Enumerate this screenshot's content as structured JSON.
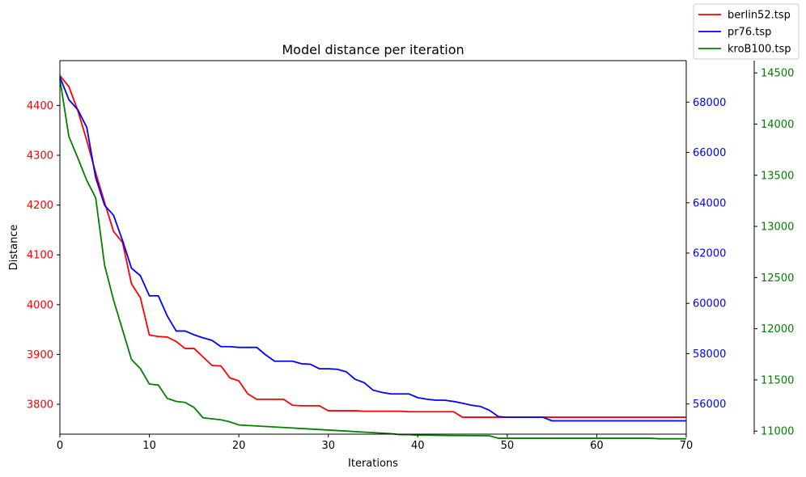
{
  "chart_data": {
    "type": "line",
    "title": "Model distance per iteration",
    "xlabel": "Iterations",
    "ylabel": "Distance",
    "xlim": [
      0,
      70
    ],
    "xticks": [
      0,
      10,
      20,
      30,
      40,
      50,
      60,
      70
    ],
    "grid": false,
    "legend_position": "top-right (outside figure corner)",
    "axes": [
      {
        "name": "berlin52-axis",
        "side": "left",
        "color": "#ff0000",
        "ylim": [
          3740,
          4490
        ],
        "ticks": [
          3800,
          3900,
          4000,
          4100,
          4200,
          4300,
          4400
        ]
      },
      {
        "name": "pr76-axis",
        "side": "right",
        "color": "#0000ff",
        "ylim": [
          54800,
          69650
        ],
        "ticks": [
          56000,
          58000,
          60000,
          62000,
          64000,
          66000,
          68000
        ]
      },
      {
        "name": "krob100-axis",
        "side": "right-outer",
        "color": "#008000",
        "ylim": [
          10970,
          14620
        ],
        "ticks": [
          11000,
          11500,
          12000,
          12500,
          13000,
          13500,
          14000,
          14500
        ]
      }
    ],
    "series": [
      {
        "name": "berlin52.tsp",
        "color": "#ff0000",
        "axis": 0,
        "x": [
          0,
          1,
          2,
          3,
          4,
          5,
          6,
          7,
          8,
          9,
          10,
          11,
          12,
          13,
          14,
          15,
          16,
          17,
          18,
          19,
          20,
          21,
          22,
          23,
          24,
          25,
          26,
          27,
          28,
          29,
          30,
          31,
          32,
          33,
          34,
          35,
          36,
          37,
          38,
          39,
          40,
          41,
          42,
          43,
          44,
          45,
          46,
          47,
          48,
          49,
          50,
          51,
          52,
          53,
          54,
          55,
          56,
          57,
          58,
          59,
          60,
          61,
          62,
          63,
          64,
          65,
          66,
          67,
          68,
          69,
          70
        ],
        "values": [
          4460,
          4438,
          4390,
          4330,
          4265,
          4205,
          4147,
          4125,
          4042,
          4014,
          3939,
          3936,
          3935,
          3926,
          3912,
          3912,
          3895,
          3878,
          3877,
          3853,
          3847,
          3821,
          3810,
          3810,
          3810,
          3810,
          3798,
          3797,
          3797,
          3797,
          3787,
          3787,
          3787,
          3787,
          3786,
          3786,
          3786,
          3786,
          3786,
          3785,
          3785,
          3785,
          3785,
          3785,
          3785,
          3774,
          3774,
          3774,
          3774,
          3774,
          3774,
          3774,
          3774,
          3774,
          3774,
          3774,
          3774,
          3774,
          3774,
          3774,
          3774,
          3774,
          3774,
          3774,
          3774,
          3774,
          3774,
          3774,
          3774,
          3774,
          3774
        ]
      },
      {
        "name": "pr76.tsp",
        "color": "#0000ff",
        "axis": 1,
        "x": [
          0,
          1,
          2,
          3,
          4,
          5,
          6,
          7,
          8,
          9,
          10,
          11,
          12,
          13,
          14,
          15,
          16,
          17,
          18,
          19,
          20,
          21,
          22,
          23,
          24,
          25,
          26,
          27,
          28,
          29,
          30,
          31,
          32,
          33,
          34,
          35,
          36,
          37,
          38,
          39,
          40,
          41,
          42,
          43,
          44,
          45,
          46,
          47,
          48,
          49,
          50,
          51,
          52,
          53,
          54,
          55,
          56,
          57,
          58,
          59,
          60,
          61,
          62,
          63,
          64,
          65,
          66,
          67,
          68,
          69,
          70
        ],
        "values": [
          69000,
          68100,
          67700,
          67000,
          65000,
          63900,
          63500,
          62500,
          61400,
          61100,
          60300,
          60300,
          59500,
          58900,
          58900,
          58750,
          58630,
          58530,
          58280,
          58280,
          58250,
          58250,
          58250,
          57950,
          57700,
          57700,
          57700,
          57600,
          57580,
          57400,
          57400,
          57380,
          57280,
          56980,
          56850,
          56550,
          56460,
          56400,
          56400,
          56400,
          56250,
          56190,
          56150,
          56150,
          56100,
          56030,
          55950,
          55900,
          55750,
          55500,
          55470,
          55470,
          55470,
          55470,
          55470,
          55330,
          55330,
          55330,
          55330,
          55330,
          55330,
          55330,
          55330,
          55330,
          55330,
          55330,
          55330,
          55330,
          55330,
          55330,
          55330
        ]
      },
      {
        "name": "kroB100.tsp",
        "color": "#008000",
        "axis": 2,
        "x": [
          0,
          1,
          2,
          3,
          4,
          5,
          6,
          7,
          8,
          9,
          10,
          11,
          12,
          13,
          14,
          15,
          16,
          17,
          18,
          19,
          20,
          21,
          22,
          23,
          24,
          25,
          26,
          27,
          28,
          29,
          30,
          31,
          32,
          33,
          34,
          35,
          36,
          37,
          38,
          39,
          40,
          41,
          42,
          43,
          44,
          45,
          46,
          47,
          48,
          49,
          50,
          51,
          52,
          53,
          54,
          55,
          56,
          57,
          58,
          59,
          60,
          61,
          62,
          63,
          64,
          65,
          66,
          67,
          68,
          69,
          70
        ],
        "values": [
          14440,
          13880,
          13670,
          13450,
          13280,
          12620,
          12280,
          11990,
          11700,
          11610,
          11460,
          11450,
          11320,
          11290,
          11280,
          11230,
          11130,
          11120,
          11110,
          11090,
          11060,
          11055,
          11050,
          11045,
          11040,
          11035,
          11030,
          11025,
          11020,
          11015,
          11010,
          11005,
          11000,
          10995,
          10990,
          10985,
          10980,
          10975,
          10965,
          10965,
          10960,
          10960,
          10958,
          10957,
          10956,
          10956,
          10955,
          10955,
          10954,
          10930,
          10930,
          10930,
          10930,
          10930,
          10930,
          10930,
          10930,
          10930,
          10930,
          10930,
          10930,
          10930,
          10930,
          10930,
          10930,
          10930,
          10930,
          10925,
          10925,
          10925,
          10925
        ]
      }
    ]
  }
}
